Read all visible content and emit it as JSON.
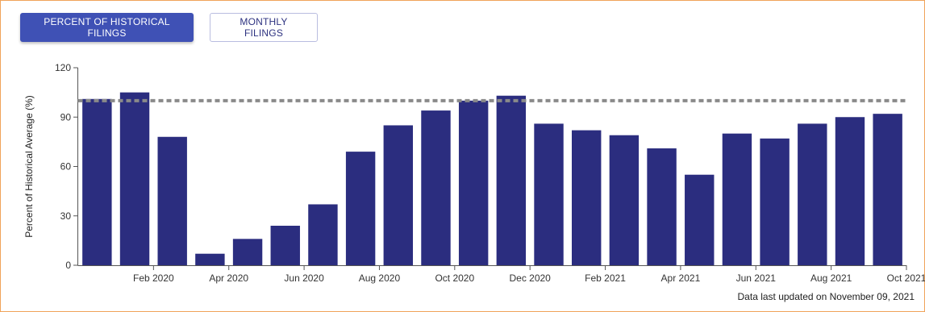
{
  "toggles": {
    "percent_label": "PERCENT OF HISTORICAL FILINGS",
    "monthly_label": "MONTHLY FILINGS"
  },
  "colors": {
    "bar": "#2b2d7f",
    "reference_line": "#8a8a8a",
    "active_button": "#3f51b5",
    "frame_border": "#f0a35a"
  },
  "footnote": "Data last updated on November 09, 2021",
  "chart_data": {
    "type": "bar",
    "ylabel": "Percent of Historical Average (%)",
    "xlabel": "",
    "ylim": [
      0,
      120
    ],
    "yticks": [
      0,
      30,
      60,
      90,
      120
    ],
    "reference_line": 100,
    "categories": [
      "Jan 2020",
      "Feb 2020",
      "Mar 2020",
      "Apr 2020",
      "May 2020",
      "Jun 2020",
      "Jul 2020",
      "Aug 2020",
      "Sep 2020",
      "Oct 2020",
      "Nov 2020",
      "Dec 2020",
      "Jan 2021",
      "Feb 2021",
      "Mar 2021",
      "Apr 2021",
      "May 2021",
      "Jun 2021",
      "Jul 2021",
      "Aug 2021",
      "Sep 2021",
      "Oct 2021"
    ],
    "values": [
      101,
      105,
      78,
      7,
      16,
      24,
      37,
      69,
      85,
      94,
      100,
      103,
      86,
      82,
      79,
      71,
      55,
      80,
      77,
      86,
      90,
      92
    ],
    "tick_labels": [
      "Feb 2020",
      "Apr 2020",
      "Jun 2020",
      "Aug 2020",
      "Oct 2020",
      "Dec 2020",
      "Feb 2021",
      "Apr 2021",
      "Jun 2021",
      "Aug 2021",
      "Oct 2021"
    ],
    "tick_categories": [
      "Feb 2020",
      "Apr 2020",
      "Jun 2020",
      "Aug 2020",
      "Oct 2020",
      "Dec 2020",
      "Feb 2021",
      "Apr 2021",
      "Jun 2021",
      "Aug 2021",
      "Oct 2021"
    ],
    "grid": false,
    "legend": "none"
  }
}
